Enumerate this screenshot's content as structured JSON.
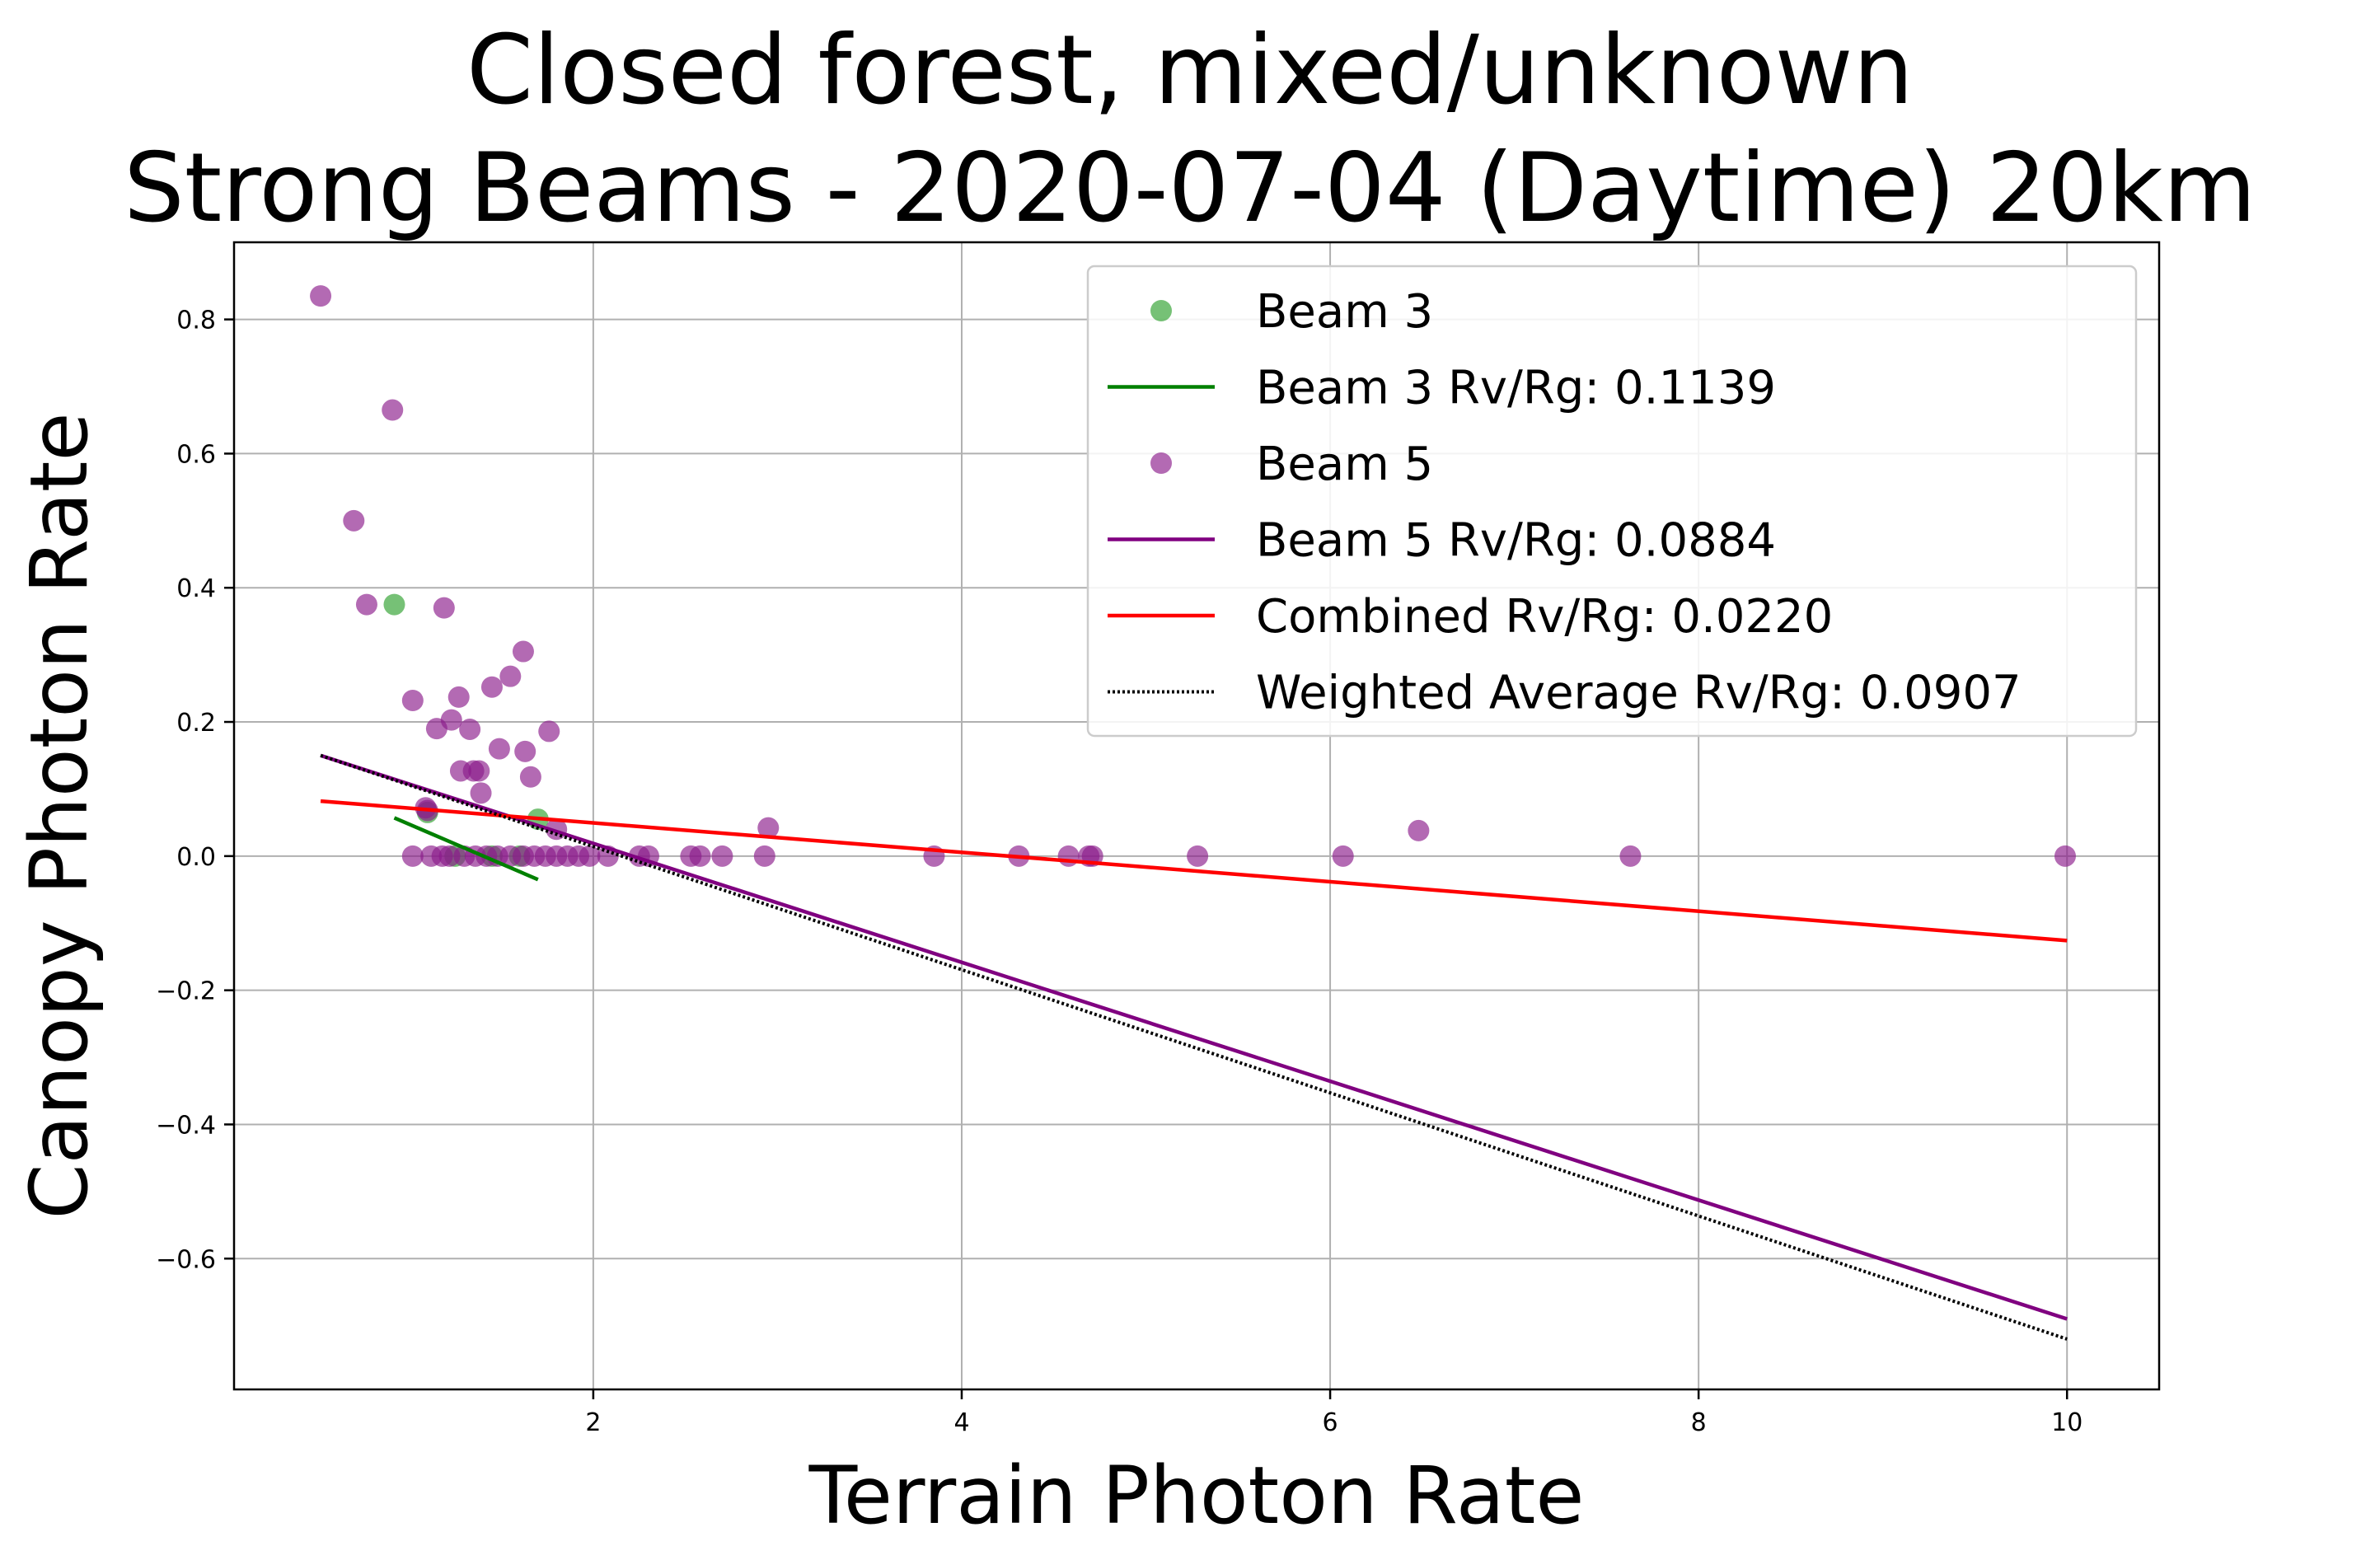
{
  "chart_data": {
    "type": "scatter",
    "title": "Closed forest, mixed/unknown\nStrong Beams - 2020-07-04 (Daytime) 20km",
    "title_lines": [
      "Closed forest, mixed/unknown",
      "Strong Beams - 2020-07-04 (Daytime) 20km"
    ],
    "xlabel": "Terrain Photon Rate",
    "ylabel": "Canopy Photon Rate",
    "xlim": [
      0.05,
      10.5
    ],
    "ylim": [
      -0.795,
      0.915
    ],
    "xticks": [
      2,
      4,
      6,
      8,
      10
    ],
    "xtick_labels": [
      "2",
      "4",
      "6",
      "8",
      "10"
    ],
    "yticks": [
      -0.6,
      -0.4,
      -0.2,
      0.0,
      0.2,
      0.4,
      0.6,
      0.8
    ],
    "ytick_labels": [
      "−0.6",
      "−0.4",
      "−0.2",
      "0.0",
      "0.2",
      "0.4",
      "0.6",
      "0.8"
    ],
    "grid": true,
    "legend_position": "top-right",
    "series": [
      {
        "name": "Beam 3",
        "kind": "scatter",
        "color": "#2ca02c",
        "points": [
          [
            0.92,
            0.375
          ],
          [
            1.7,
            0.055
          ],
          [
            1.1,
            0.065
          ],
          [
            1.25,
            0.0
          ],
          [
            1.45,
            0.0
          ],
          [
            1.6,
            0.0
          ]
        ]
      },
      {
        "name": "Beam 5",
        "kind": "scatter",
        "color": "#8b1a8b",
        "points": [
          [
            0.52,
            0.835
          ],
          [
            0.91,
            0.665
          ],
          [
            0.7,
            0.5
          ],
          [
            0.77,
            0.375
          ],
          [
            1.19,
            0.37
          ],
          [
            1.62,
            0.305
          ],
          [
            1.55,
            0.268
          ],
          [
            1.45,
            0.252
          ],
          [
            1.27,
            0.237
          ],
          [
            1.02,
            0.232
          ],
          [
            1.23,
            0.203
          ],
          [
            1.15,
            0.19
          ],
          [
            1.33,
            0.189
          ],
          [
            1.76,
            0.186
          ],
          [
            1.49,
            0.16
          ],
          [
            1.63,
            0.156
          ],
          [
            1.28,
            0.127
          ],
          [
            1.35,
            0.127
          ],
          [
            1.38,
            0.127
          ],
          [
            1.66,
            0.118
          ],
          [
            1.39,
            0.094
          ],
          [
            1.09,
            0.072
          ],
          [
            1.1,
            0.068
          ],
          [
            1.8,
            0.04
          ],
          [
            2.95,
            0.042
          ],
          [
            6.48,
            0.038
          ],
          [
            1.02,
            0.0
          ],
          [
            1.12,
            0.0
          ],
          [
            1.18,
            0.0
          ],
          [
            1.22,
            0.0
          ],
          [
            1.3,
            0.0
          ],
          [
            1.36,
            0.0
          ],
          [
            1.42,
            0.0
          ],
          [
            1.48,
            0.0
          ],
          [
            1.55,
            0.0
          ],
          [
            1.62,
            0.0
          ],
          [
            1.68,
            0.0
          ],
          [
            1.74,
            0.0
          ],
          [
            1.8,
            0.0
          ],
          [
            1.86,
            0.0
          ],
          [
            1.92,
            0.0
          ],
          [
            1.98,
            0.0
          ],
          [
            2.08,
            0.0
          ],
          [
            2.25,
            0.0
          ],
          [
            2.3,
            0.0
          ],
          [
            2.53,
            0.0
          ],
          [
            2.58,
            0.0
          ],
          [
            2.7,
            0.0
          ],
          [
            2.93,
            0.0
          ],
          [
            3.85,
            0.0
          ],
          [
            4.31,
            0.0
          ],
          [
            4.58,
            0.0
          ],
          [
            4.69,
            0.0
          ],
          [
            4.71,
            0.0
          ],
          [
            5.28,
            0.0
          ],
          [
            6.07,
            0.0
          ],
          [
            7.63,
            0.0
          ],
          [
            9.99,
            0.0
          ]
        ]
      },
      {
        "name": "Beam 3 Rv/Rg: 0.1139",
        "kind": "line",
        "color": "#008000",
        "style": "solid",
        "points": [
          [
            0.92,
            0.057
          ],
          [
            1.7,
            -0.035
          ]
        ]
      },
      {
        "name": "Beam 5 Rv/Rg: 0.0884",
        "kind": "line",
        "color": "#800080",
        "style": "solid",
        "points": [
          [
            0.52,
            0.15
          ],
          [
            10.0,
            -0.69
          ]
        ]
      },
      {
        "name": "Combined Rv/Rg: 0.0220",
        "kind": "line",
        "color": "#ff0000",
        "style": "solid",
        "points": [
          [
            0.52,
            0.082
          ],
          [
            10.0,
            -0.126
          ]
        ]
      },
      {
        "name": "Weighted Average Rv/Rg: 0.0907",
        "kind": "line",
        "color": "#000000",
        "style": "dotted",
        "points": [
          [
            0.52,
            0.15
          ],
          [
            10.0,
            -0.72
          ]
        ]
      }
    ],
    "legend": [
      {
        "label": "Beam 3",
        "kind": "marker",
        "color": "#2ca02c"
      },
      {
        "label": "Beam 3 Rv/Rg: 0.1139",
        "kind": "line",
        "color": "#008000",
        "style": "solid"
      },
      {
        "label": "Beam 5",
        "kind": "marker",
        "color": "#8b1a8b"
      },
      {
        "label": "Beam 5 Rv/Rg: 0.0884",
        "kind": "line",
        "color": "#800080",
        "style": "solid"
      },
      {
        "label": "Combined Rv/Rg: 0.0220",
        "kind": "line",
        "color": "#ff0000",
        "style": "solid"
      },
      {
        "label": "Weighted Average Rv/Rg: 0.0907",
        "kind": "line",
        "color": "#000000",
        "style": "dotted"
      }
    ]
  }
}
